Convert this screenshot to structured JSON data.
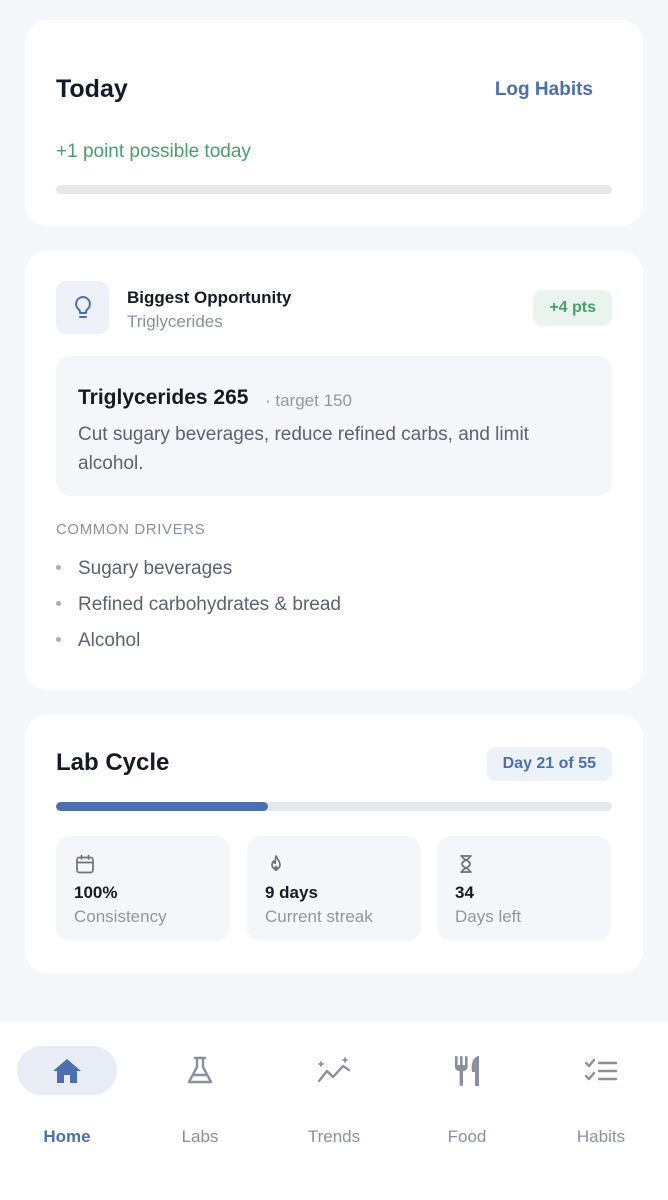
{
  "today": {
    "title": "Today",
    "log_button": "Log Habits",
    "points_text": "+1 point possible today",
    "progress": 0
  },
  "opportunity": {
    "icon": "lightbulb-icon",
    "title": "Biggest Opportunity",
    "subtitle": "Triglycerides",
    "badge": "+4 pts",
    "metric": "Triglycerides 265",
    "target": "· target 150",
    "advice": "Cut sugary beverages, reduce refined carbs, and limit alcohol.",
    "drivers_heading": "COMMON DRIVERS",
    "drivers": [
      "Sugary beverages",
      "Refined carbohydrates & bread",
      "Alcohol"
    ]
  },
  "lab_cycle": {
    "title": "Lab Cycle",
    "day_badge": "Day 21 of 55",
    "progress": 0.382,
    "stats": [
      {
        "icon": "calendar-icon",
        "value": "100%",
        "label": "Consistency"
      },
      {
        "icon": "flame-icon",
        "value": "9 days",
        "label": "Current streak"
      },
      {
        "icon": "hourglass-icon",
        "value": "34",
        "label": "Days left"
      }
    ]
  },
  "nav": {
    "active": 0,
    "items": [
      {
        "icon": "home-icon",
        "label": "Home"
      },
      {
        "icon": "flask-icon",
        "label": "Labs"
      },
      {
        "icon": "trends-icon",
        "label": "Trends"
      },
      {
        "icon": "fork-knife-icon",
        "label": "Food"
      },
      {
        "icon": "checklist-icon",
        "label": "Habits"
      }
    ]
  },
  "colors": {
    "accent": "#4b6fb1",
    "success": "#4a9e6b",
    "background": "#f5f7fb"
  }
}
